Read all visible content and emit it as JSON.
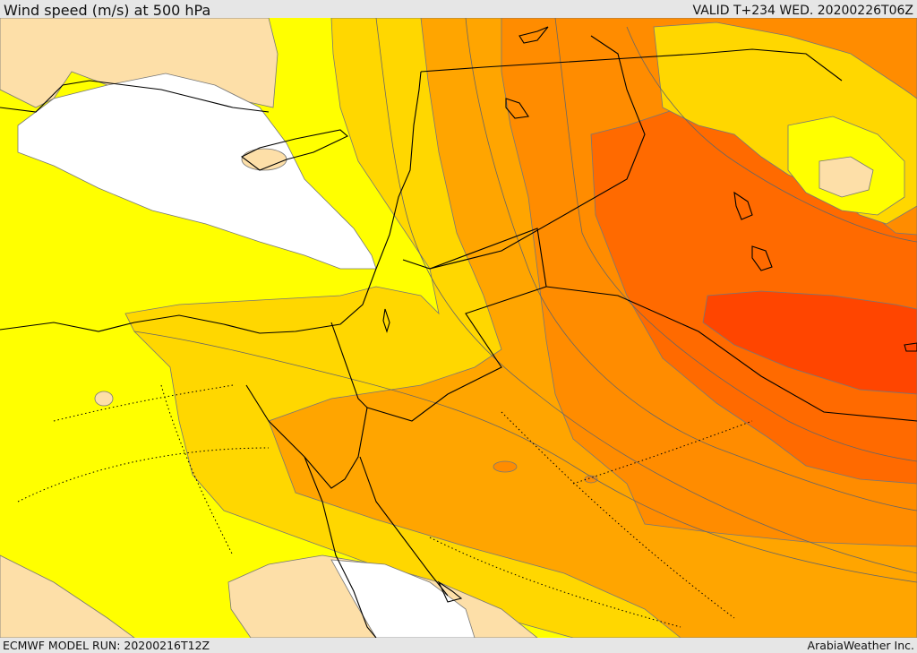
{
  "header": {
    "title": "Wind speed (m/s) at 500 hPa",
    "valid": "VALID T+234 WED. 20200226T06Z"
  },
  "footer": {
    "model_run": "ECMWF MODEL RUN: 20200216T12Z",
    "provider": "ArabiaWeather Inc."
  },
  "colors": {
    "calm": "#ffffff",
    "level_1": "#fddfa8",
    "level_2": "#ffff00",
    "level_3": "#ffd700",
    "level_4": "#ffa500",
    "level_5": "#ff8c00",
    "level_6": "#ff6a00",
    "level_7": "#ff4500",
    "contour": "#666666",
    "border": "#000000"
  }
}
